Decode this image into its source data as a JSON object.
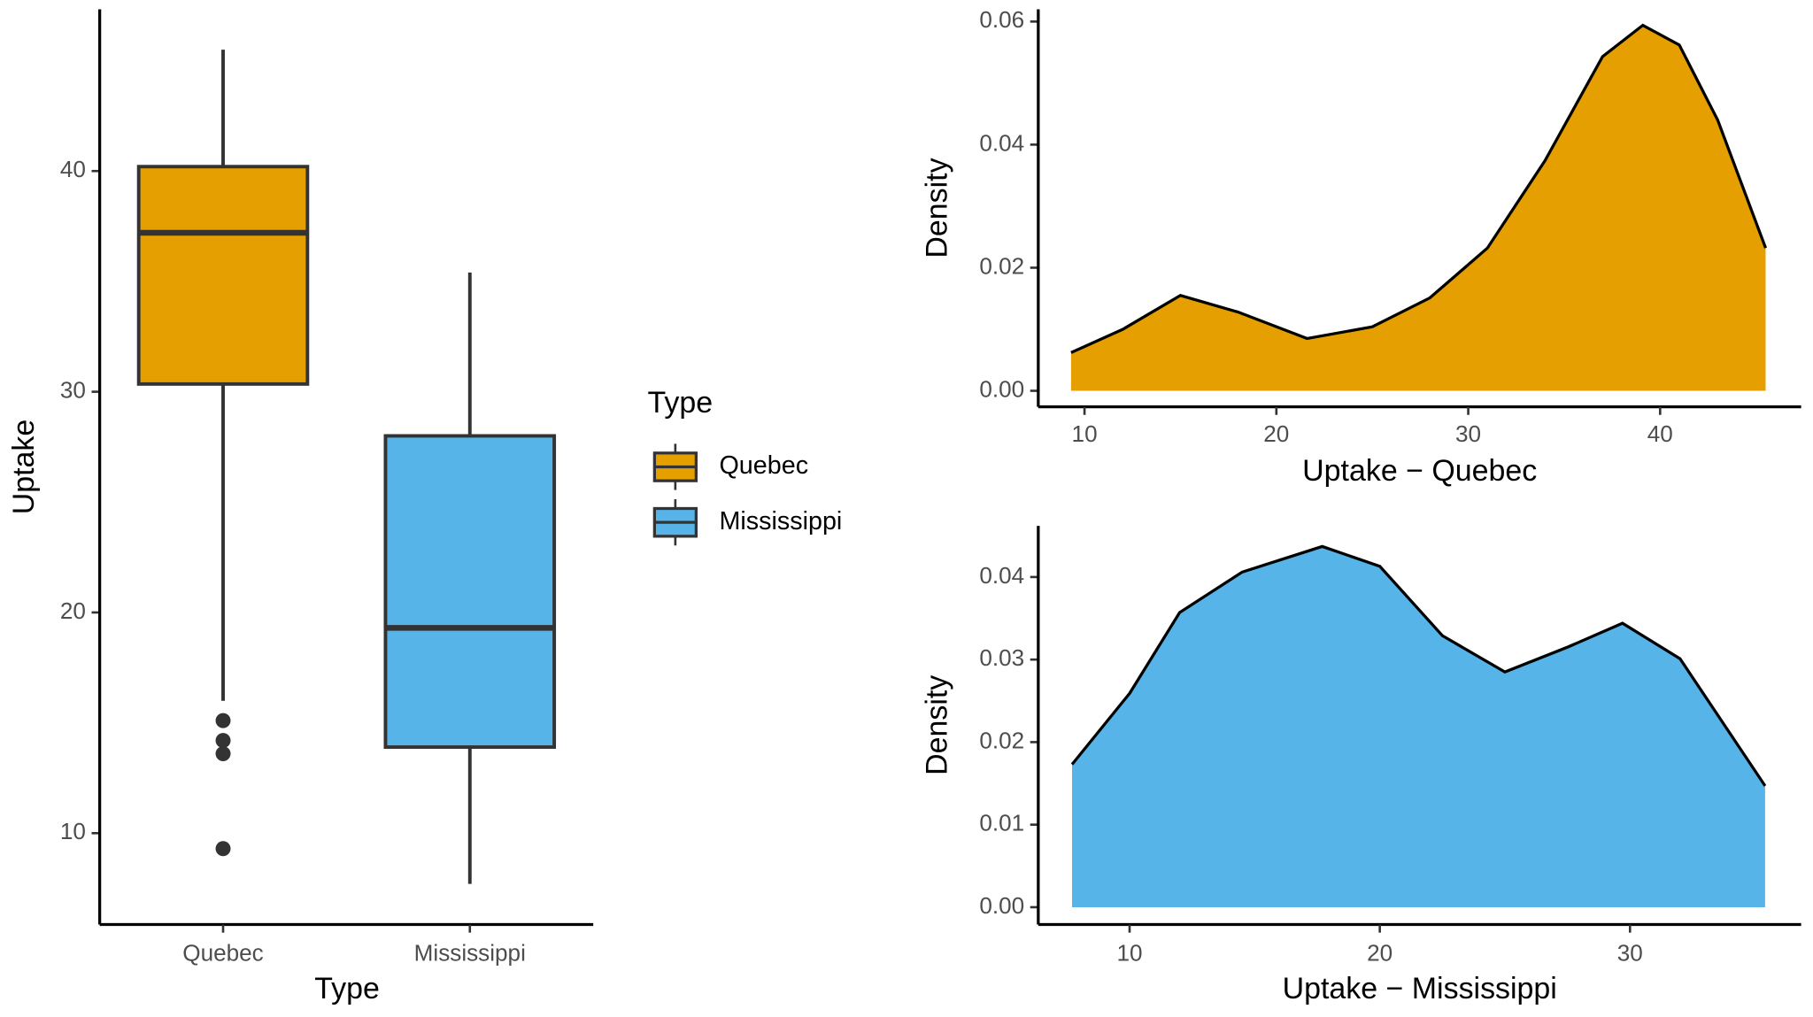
{
  "chart_data": [
    {
      "type": "box",
      "x_label": "Type",
      "y_label": "Uptake",
      "categories": [
        "Quebec",
        "Mississippi"
      ],
      "legend_title": "Type",
      "ylim": [
        5.86,
        47.33
      ],
      "yticks": [
        10,
        20,
        30,
        40
      ],
      "boxes": [
        {
          "color": "#E69F00",
          "whisker_low": 16.0,
          "q1": 30.35,
          "median": 37.2,
          "q3": 40.2,
          "whisker_high": 45.5,
          "outliers": [
            15.1,
            14.2,
            13.6,
            9.3
          ]
        },
        {
          "color": "#56B4E9",
          "whisker_low": 7.7,
          "q1": 13.9,
          "median": 19.3,
          "q3": 28.0,
          "whisker_high": 35.4,
          "outliers": []
        }
      ]
    },
    {
      "type": "area",
      "x_label": "Uptake − Quebec",
      "y_label": "Density",
      "color": "#E69F00",
      "x": [
        9.3,
        12,
        15,
        18,
        21.6,
        25,
        28,
        31,
        34,
        37,
        39.1,
        41,
        43,
        45.5
      ],
      "values": [
        0.0062,
        0.01,
        0.0155,
        0.0128,
        0.0085,
        0.0104,
        0.0151,
        0.0232,
        0.0374,
        0.0543,
        0.0594,
        0.0562,
        0.044,
        0.0232
      ],
      "xlim": [
        7.59,
        47.35
      ],
      "xticks": [
        10,
        20,
        30,
        40
      ],
      "ylim": [
        -0.0026,
        0.062
      ],
      "yticks": [
        {
          "value": 0,
          "label": "0.00"
        },
        0.02,
        0.04,
        0.06
      ]
    },
    {
      "type": "area",
      "x_label": "Uptake − Mississippi",
      "y_label": "Density",
      "color": "#56B4E9",
      "x": [
        7.7,
        10,
        12,
        14.5,
        17.7,
        20,
        22.5,
        25,
        27.5,
        29.7,
        32,
        35.4
      ],
      "values": [
        0.0173,
        0.0259,
        0.0357,
        0.0406,
        0.0437,
        0.0413,
        0.0329,
        0.0285,
        0.0315,
        0.0344,
        0.0301,
        0.0147
      ],
      "xlim": [
        6.35,
        36.84
      ],
      "xticks": [
        10,
        20,
        30
      ],
      "ylim": [
        -0.0021,
        0.0462
      ],
      "yticks": [
        {
          "value": 0,
          "label": "0.00"
        },
        0.01,
        0.02,
        0.03,
        0.04
      ]
    }
  ]
}
